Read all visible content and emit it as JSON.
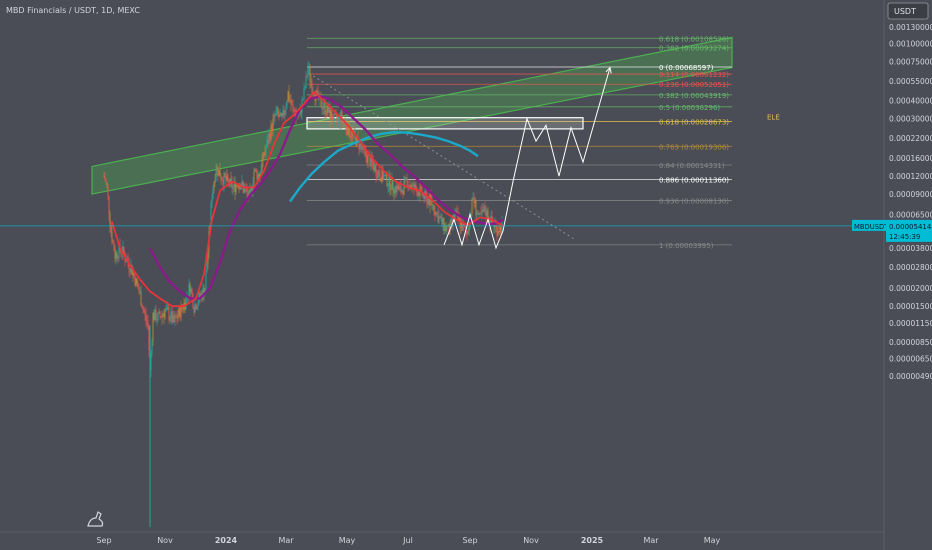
{
  "header": {
    "title": "MBD Financials / USDT, 1D, MEXC"
  },
  "currency_badge": "USDT",
  "colors": {
    "background": "#4a4d55",
    "axis_panel": "#4a4d55",
    "candle_up": "#26a69a",
    "candle_down": "#ef5350",
    "candle_alt": "#b08a3a",
    "ma_red": "#e8343a",
    "ma_purple": "#8b1a8b",
    "ma_cyan": "#1ca9c9",
    "channel": "#4caf50",
    "projection": "#ffffff",
    "price_line": "#00bcd4"
  },
  "chart_data": {
    "type": "candlestick",
    "y_scale": "log",
    "ylim": [
      4.2e-07,
      0.0015
    ],
    "y_ticks": [
      {
        "label": "0.00130000",
        "value": 0.0013
      },
      {
        "label": "0.00100000",
        "value": 0.001
      },
      {
        "label": "0.00075000",
        "value": 0.00075
      },
      {
        "label": "0.00055000",
        "value": 0.00055
      },
      {
        "label": "0.00040000",
        "value": 0.0004
      },
      {
        "label": "0.00030000",
        "value": 0.0003
      },
      {
        "label": "0.00022000",
        "value": 0.00022
      },
      {
        "label": "0.00016000",
        "value": 0.00016
      },
      {
        "label": "0.00012000",
        "value": 0.00012
      },
      {
        "label": "0.00009000",
        "value": 9e-05
      },
      {
        "label": "0.00006500",
        "value": 6.5e-05
      },
      {
        "label": "0.00003800",
        "value": 3.8e-05
      },
      {
        "label": "0.00002800",
        "value": 2.8e-05
      },
      {
        "label": "0.00002000",
        "value": 2e-05
      },
      {
        "label": "0.00001500",
        "value": 1.5e-05
      },
      {
        "label": "0.00001150",
        "value": 1.15e-05
      },
      {
        "label": "0.00000850",
        "value": 8.5e-06
      },
      {
        "label": "0.00000650",
        "value": 6.5e-06
      },
      {
        "label": "0.00000490",
        "value": 4.9e-06
      }
    ],
    "x_ticks": [
      {
        "label": "Sep",
        "t": 0
      },
      {
        "label": "Nov",
        "t": 61
      },
      {
        "label": "2024",
        "t": 122
      },
      {
        "label": "Mar",
        "t": 182
      },
      {
        "label": "May",
        "t": 243
      },
      {
        "label": "Jul",
        "t": 304
      },
      {
        "label": "Sep",
        "t": 366
      },
      {
        "label": "Nov",
        "t": 427
      },
      {
        "label": "2025",
        "t": 488
      },
      {
        "label": "Mar",
        "t": 547
      },
      {
        "label": "May",
        "t": 608
      }
    ],
    "xlim": [
      -12,
      640
    ],
    "fib_levels": [
      {
        "label": "0.618 (0.00108520)",
        "value": 0.0010852,
        "color": "#66bb6a",
        "x0": 203,
        "x1": 628
      },
      {
        "label": "0.382 (0.00093274)",
        "value": 0.00093274,
        "color": "#66bb6a",
        "x0": 203,
        "x1": 628
      },
      {
        "label": "0 (0.00068597)",
        "value": 0.00068597,
        "color": "#ffffff",
        "x0": 203,
        "x1": 628
      },
      {
        "label": "0.114 (0.00061232)",
        "value": 0.00061232,
        "color": "#ef5350",
        "x0": 203,
        "x1": 628
      },
      {
        "label": "0.236 (0.00052051)",
        "value": 0.00052051,
        "color": "#ef5350",
        "x0": 203,
        "x1": 628
      },
      {
        "label": "0.382 (0.00043919)",
        "value": 0.00043919,
        "color": "#66bb6a",
        "x0": 203,
        "x1": 628
      },
      {
        "label": "0.5 (0.00036296)",
        "value": 0.00036296,
        "color": "#66bb6a",
        "x0": 203,
        "x1": 628
      },
      {
        "label": "0.618 (0.00028673)",
        "value": 0.00028673,
        "color": "#e2c24a",
        "x0": 203,
        "x1": 628
      },
      {
        "label": "0.763 (0.00019306)",
        "value": 0.00019306,
        "color": "#b08a3a",
        "x0": 203,
        "x1": 628
      },
      {
        "label": "0.84 (0.00014331)",
        "value": 0.00014331,
        "color": "#8a8a8a",
        "x0": 203,
        "x1": 628
      },
      {
        "label": "0.886 (0.00011360)",
        "value": 0.0001136,
        "color": "#ffffff",
        "x0": 203,
        "x1": 628
      },
      {
        "label": "0.936 (0.00008130)",
        "value": 8.13e-05,
        "color": "#8a8a8a",
        "x0": 203,
        "x1": 628
      },
      {
        "label": "1 (0.00003995)",
        "value": 3.995e-05,
        "color": "#8a8a8a",
        "x0": 203,
        "x1": 628
      }
    ],
    "ele_label": "ELE",
    "channel": {
      "upper_start": {
        "t": -12,
        "value": 0.00014
      },
      "upper_end": {
        "t": 628,
        "value": 0.0011
      },
      "lower_start": {
        "t": -12,
        "value": 9e-05
      },
      "lower_end": {
        "t": 628,
        "value": 0.00068
      }
    },
    "resistance_box": {
      "t0": 203,
      "t1": 479,
      "v_top": 0.000305,
      "v_bottom": 0.000255
    },
    "candles_path": [
      {
        "t": 0,
        "v": 0.00012
      },
      {
        "t": 3,
        "v": 0.0001
      },
      {
        "t": 7,
        "v": 5e-05
      },
      {
        "t": 11,
        "v": 3.4e-05
      },
      {
        "t": 17,
        "v": 3.8e-05
      },
      {
        "t": 22,
        "v": 3.2e-05
      },
      {
        "t": 27,
        "v": 2.8e-05
      },
      {
        "t": 32,
        "v": 2.2e-05
      },
      {
        "t": 36,
        "v": 1.8e-05
      },
      {
        "t": 40,
        "v": 1.35e-05
      },
      {
        "t": 44,
        "v": 1.1e-05
      },
      {
        "t": 46,
        "v": 5.2e-06
      },
      {
        "t": 49,
        "v": 1.3e-05
      },
      {
        "t": 55,
        "v": 1.25e-05
      },
      {
        "t": 61,
        "v": 1.4e-05
      },
      {
        "t": 66,
        "v": 1.3e-05
      },
      {
        "t": 70,
        "v": 1.15e-05
      },
      {
        "t": 75,
        "v": 1.35e-05
      },
      {
        "t": 81,
        "v": 1.6e-05
      },
      {
        "t": 86,
        "v": 2.1e-05
      },
      {
        "t": 90,
        "v": 1.5e-05
      },
      {
        "t": 95,
        "v": 1.7e-05
      },
      {
        "t": 101,
        "v": 2e-05
      },
      {
        "t": 105,
        "v": 4.5e-05
      },
      {
        "t": 108,
        "v": 9e-05
      },
      {
        "t": 112,
        "v": 0.00014
      },
      {
        "t": 117,
        "v": 0.00012
      },
      {
        "t": 123,
        "v": 0.00011
      },
      {
        "t": 129,
        "v": 0.0001
      },
      {
        "t": 135,
        "v": 0.00011
      },
      {
        "t": 141,
        "v": 9.5e-05
      },
      {
        "t": 146,
        "v": 8.5e-05
      },
      {
        "t": 150,
        "v": 0.00013
      },
      {
        "t": 155,
        "v": 0.00012
      },
      {
        "t": 160,
        "v": 0.00017
      },
      {
        "t": 166,
        "v": 0.00024
      },
      {
        "t": 172,
        "v": 0.00033
      },
      {
        "t": 178,
        "v": 0.00029
      },
      {
        "t": 184,
        "v": 0.00045
      },
      {
        "t": 189,
        "v": 0.00034
      },
      {
        "t": 195,
        "v": 0.00031
      },
      {
        "t": 200,
        "v": 0.00045
      },
      {
        "t": 204,
        "v": 0.00068
      },
      {
        "t": 208,
        "v": 0.0005
      },
      {
        "t": 213,
        "v": 0.00042
      },
      {
        "t": 219,
        "v": 0.00037
      },
      {
        "t": 225,
        "v": 0.00033
      },
      {
        "t": 231,
        "v": 0.00029
      },
      {
        "t": 237,
        "v": 0.00031
      },
      {
        "t": 243,
        "v": 0.00026
      },
      {
        "t": 249,
        "v": 0.00023
      },
      {
        "t": 255,
        "v": 0.0002
      },
      {
        "t": 261,
        "v": 0.00017
      },
      {
        "t": 267,
        "v": 0.00015
      },
      {
        "t": 273,
        "v": 0.00013
      },
      {
        "t": 279,
        "v": 0.00012
      },
      {
        "t": 285,
        "v": 0.00011
      },
      {
        "t": 291,
        "v": 0.0001
      },
      {
        "t": 297,
        "v": 9.5e-05
      },
      {
        "t": 303,
        "v": 0.00011
      },
      {
        "t": 309,
        "v": 0.0001
      },
      {
        "t": 315,
        "v": 9.5e-05
      },
      {
        "t": 321,
        "v": 8.5e-05
      },
      {
        "t": 327,
        "v": 8e-05
      },
      {
        "t": 333,
        "v": 6.5e-05
      },
      {
        "t": 339,
        "v": 5.5e-05
      },
      {
        "t": 345,
        "v": 5e-05
      },
      {
        "t": 351,
        "v": 6.5e-05
      },
      {
        "t": 357,
        "v": 5.5e-05
      },
      {
        "t": 363,
        "v": 4.8e-05
      },
      {
        "t": 369,
        "v": 8.5e-05
      },
      {
        "t": 375,
        "v": 6e-05
      },
      {
        "t": 381,
        "v": 7e-05
      },
      {
        "t": 387,
        "v": 5.8e-05
      },
      {
        "t": 393,
        "v": 5.2e-05
      },
      {
        "t": 399,
        "v": 5.4e-05
      }
    ],
    "ma_red": [
      {
        "t": 8,
        "v": 5.8e-05
      },
      {
        "t": 16,
        "v": 3.8e-05
      },
      {
        "t": 26,
        "v": 2.9e-05
      },
      {
        "t": 36,
        "v": 2.3e-05
      },
      {
        "t": 46,
        "v": 1.9e-05
      },
      {
        "t": 56,
        "v": 1.7e-05
      },
      {
        "t": 68,
        "v": 1.5e-05
      },
      {
        "t": 80,
        "v": 1.5e-05
      },
      {
        "t": 92,
        "v": 1.7e-05
      },
      {
        "t": 100,
        "v": 2.5e-05
      },
      {
        "t": 108,
        "v": 6e-05
      },
      {
        "t": 116,
        "v": 9.5e-05
      },
      {
        "t": 128,
        "v": 0.00011
      },
      {
        "t": 140,
        "v": 0.0001
      },
      {
        "t": 150,
        "v": 0.0001
      },
      {
        "t": 160,
        "v": 0.00013
      },
      {
        "t": 170,
        "v": 0.0002
      },
      {
        "t": 180,
        "v": 0.00028
      },
      {
        "t": 190,
        "v": 0.00032
      },
      {
        "t": 200,
        "v": 0.00038
      },
      {
        "t": 210,
        "v": 0.00046
      },
      {
        "t": 220,
        "v": 0.0004
      },
      {
        "t": 232,
        "v": 0.00033
      },
      {
        "t": 244,
        "v": 0.00027
      },
      {
        "t": 256,
        "v": 0.00021
      },
      {
        "t": 268,
        "v": 0.00016
      },
      {
        "t": 280,
        "v": 0.00013
      },
      {
        "t": 292,
        "v": 0.00011
      },
      {
        "t": 304,
        "v": 0.0001
      },
      {
        "t": 316,
        "v": 9.5e-05
      },
      {
        "t": 328,
        "v": 8.2e-05
      },
      {
        "t": 340,
        "v": 6.8e-05
      },
      {
        "t": 352,
        "v": 6e-05
      },
      {
        "t": 364,
        "v": 5.5e-05
      },
      {
        "t": 376,
        "v": 6.2e-05
      },
      {
        "t": 388,
        "v": 6e-05
      },
      {
        "t": 399,
        "v": 5.4e-05
      }
    ],
    "ma_purple": [
      {
        "t": 46,
        "v": 3.8e-05
      },
      {
        "t": 56,
        "v": 2.8e-05
      },
      {
        "t": 66,
        "v": 2.2e-05
      },
      {
        "t": 76,
        "v": 1.9e-05
      },
      {
        "t": 86,
        "v": 1.7e-05
      },
      {
        "t": 96,
        "v": 1.7e-05
      },
      {
        "t": 106,
        "v": 2e-05
      },
      {
        "t": 116,
        "v": 3e-05
      },
      {
        "t": 126,
        "v": 5e-05
      },
      {
        "t": 136,
        "v": 7e-05
      },
      {
        "t": 146,
        "v": 8.8e-05
      },
      {
        "t": 156,
        "v": 0.000105
      },
      {
        "t": 166,
        "v": 0.00013
      },
      {
        "t": 176,
        "v": 0.00017
      },
      {
        "t": 186,
        "v": 0.00025
      },
      {
        "t": 196,
        "v": 0.00035
      },
      {
        "t": 206,
        "v": 0.00041
      },
      {
        "t": 216,
        "v": 0.00043
      },
      {
        "t": 226,
        "v": 0.00041
      },
      {
        "t": 238,
        "v": 0.00036
      },
      {
        "t": 250,
        "v": 0.0003
      },
      {
        "t": 262,
        "v": 0.00025
      },
      {
        "t": 274,
        "v": 0.0002
      },
      {
        "t": 286,
        "v": 0.00017
      },
      {
        "t": 298,
        "v": 0.00014
      },
      {
        "t": 310,
        "v": 0.00012
      },
      {
        "t": 322,
        "v": 0.0001
      },
      {
        "t": 334,
        "v": 8.2e-05
      },
      {
        "t": 346,
        "v": 7e-05
      },
      {
        "t": 358,
        "v": 6.2e-05
      },
      {
        "t": 370,
        "v": 5.8e-05
      },
      {
        "t": 382,
        "v": 5.6e-05
      },
      {
        "t": 392,
        "v": 5.6e-05
      },
      {
        "t": 399,
        "v": 6e-05
      }
    ],
    "ma_cyan": [
      {
        "t": 186,
        "v": 8e-05
      },
      {
        "t": 196,
        "v": 0.0001
      },
      {
        "t": 208,
        "v": 0.000125
      },
      {
        "t": 220,
        "v": 0.00015
      },
      {
        "t": 234,
        "v": 0.00018
      },
      {
        "t": 248,
        "v": 0.0002
      },
      {
        "t": 262,
        "v": 0.00022
      },
      {
        "t": 276,
        "v": 0.000235
      },
      {
        "t": 290,
        "v": 0.000242
      },
      {
        "t": 304,
        "v": 0.00024
      },
      {
        "t": 318,
        "v": 0.000232
      },
      {
        "t": 332,
        "v": 0.000222
      },
      {
        "t": 344,
        "v": 0.00021
      },
      {
        "t": 356,
        "v": 0.000195
      },
      {
        "t": 366,
        "v": 0.00018
      },
      {
        "t": 374,
        "v": 0.000165
      }
    ],
    "projection": [
      {
        "t": 340,
        "v": 4e-05
      },
      {
        "t": 350,
        "v": 6e-05
      },
      {
        "t": 358,
        "v": 4e-05
      },
      {
        "t": 366,
        "v": 6.5e-05
      },
      {
        "t": 375,
        "v": 4e-05
      },
      {
        "t": 384,
        "v": 6e-05
      },
      {
        "t": 392,
        "v": 3.8e-05
      },
      {
        "t": 399,
        "v": 5e-05
      },
      {
        "t": 409,
        "v": 0.00011
      },
      {
        "t": 423,
        "v": 0.0003
      },
      {
        "t": 432,
        "v": 0.00021
      },
      {
        "t": 442,
        "v": 0.00027
      },
      {
        "t": 455,
        "v": 0.00012
      },
      {
        "t": 467,
        "v": 0.00026
      },
      {
        "t": 479,
        "v": 0.00015
      },
      {
        "t": 506,
        "v": 0.00068
      }
    ],
    "dotted_trend": [
      {
        "t": 205,
        "v": 0.00062
      },
      {
        "t": 470,
        "v": 4.4e-05
      }
    ],
    "current_price": {
      "value": 5.414e-05,
      "label": "0.00005414",
      "symbol": "MBDUSDT",
      "countdown": "12:45:39"
    }
  }
}
